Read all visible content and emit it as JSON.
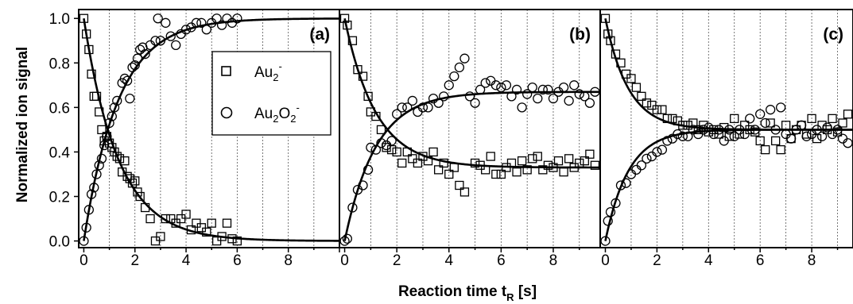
{
  "chart_data": {
    "type": "scatter",
    "ylabel": "Normalized ion signal",
    "xlabel": "Reaction time t",
    "xlabel_sub": "R",
    "xlabel_unit": " [s]",
    "ylim": [
      -0.03,
      1.04
    ],
    "yticks": [
      "0.0",
      "0.2",
      "0.4",
      "0.6",
      "0.8",
      "1.0"
    ],
    "legend": {
      "placement": "upper-right of panel (a)",
      "entries": [
        {
          "marker": "square",
          "base": "Au",
          "sub": "2",
          "sup": "-"
        },
        {
          "marker": "circle",
          "base": "Au",
          "sub": "2",
          "mid": "O",
          "sub2": "2",
          "sup": "-"
        }
      ]
    },
    "panels": [
      {
        "label": "(a)",
        "xlim": [
          -0.2,
          10
        ],
        "xticks": [
          "0",
          "2",
          "4",
          "6",
          "8"
        ],
        "series": [
          {
            "name": "Au2-",
            "marker": "square",
            "x": [
              0,
              0.1,
              0.2,
              0.3,
              0.4,
              0.5,
              0.6,
              0.7,
              0.8,
              0.9,
              1.0,
              1.1,
              1.2,
              1.3,
              1.4,
              1.5,
              1.6,
              1.7,
              1.8,
              1.9,
              2.0,
              2.1,
              2.2,
              2.4,
              2.6,
              2.8,
              3.0,
              3.2,
              3.4,
              3.6,
              3.8,
              4.0,
              4.2,
              4.4,
              4.6,
              4.8,
              5.0,
              5.2,
              5.4,
              5.6,
              5.8,
              6.0
            ],
            "y": [
              1.0,
              0.93,
              0.86,
              0.75,
              0.65,
              0.65,
              0.58,
              0.5,
              0.45,
              0.47,
              0.44,
              0.42,
              0.4,
              0.38,
              0.37,
              0.31,
              0.36,
              0.29,
              0.28,
              0.26,
              0.27,
              0.22,
              0.2,
              0.15,
              0.1,
              0.0,
              0.02,
              0.1,
              0.1,
              0.08,
              0.1,
              0.12,
              0.05,
              0.08,
              0.06,
              0.04,
              0.08,
              0.0,
              0.02,
              0.08,
              0.01,
              0.0
            ]
          },
          {
            "name": "Au2O2-",
            "marker": "circle",
            "x": [
              0,
              0.1,
              0.2,
              0.3,
              0.4,
              0.5,
              0.6,
              0.7,
              0.8,
              0.9,
              1.0,
              1.1,
              1.2,
              1.3,
              1.5,
              1.6,
              1.7,
              1.8,
              1.9,
              2.0,
              2.1,
              2.2,
              2.3,
              2.4,
              2.6,
              2.8,
              2.9,
              3.0,
              3.2,
              3.4,
              3.6,
              3.8,
              4.0,
              4.2,
              4.4,
              4.6,
              4.8,
              5.0,
              5.2,
              5.4,
              5.6,
              5.8,
              6.0
            ],
            "y": [
              0.0,
              0.06,
              0.14,
              0.21,
              0.24,
              0.3,
              0.34,
              0.37,
              0.43,
              0.47,
              0.53,
              0.56,
              0.6,
              0.63,
              0.71,
              0.73,
              0.72,
              0.64,
              0.78,
              0.79,
              0.82,
              0.86,
              0.87,
              0.84,
              0.88,
              0.9,
              1.0,
              0.9,
              0.98,
              0.92,
              0.88,
              0.93,
              0.95,
              0.96,
              0.98,
              0.98,
              0.95,
              0.98,
              1.0,
              0.97,
              1.0,
              0.98,
              1.0
            ]
          }
        ],
        "fits": [
          {
            "for": "Au2-",
            "form": "exp",
            "y0": 1.0,
            "yinf": 0.0,
            "tau": 1.35
          },
          {
            "for": "Au2O2-",
            "form": "exp",
            "y0": 0.0,
            "yinf": 1.0,
            "tau": 1.35
          }
        ]
      },
      {
        "label": "(b)",
        "xlim": [
          -0.2,
          9.8
        ],
        "xticks": [
          "0",
          "2",
          "4",
          "6",
          "8"
        ],
        "series": [
          {
            "name": "Au2-",
            "marker": "square",
            "x": [
              0,
              0.1,
              0.3,
              0.5,
              0.7,
              0.9,
              1.0,
              1.2,
              1.4,
              1.6,
              1.8,
              2.0,
              2.2,
              2.4,
              2.6,
              2.8,
              3.0,
              3.2,
              3.4,
              3.6,
              3.8,
              4.0,
              4.2,
              4.4,
              4.6,
              5.0,
              5.2,
              5.4,
              5.6,
              5.8,
              6.0,
              6.2,
              6.4,
              6.6,
              6.8,
              7.0,
              7.2,
              7.4,
              7.6,
              7.8,
              8.0,
              8.2,
              8.4,
              8.6,
              8.8,
              9.0,
              9.2,
              9.4,
              9.6
            ],
            "y": [
              1.0,
              0.97,
              0.9,
              0.77,
              0.74,
              0.65,
              0.58,
              0.56,
              0.5,
              0.42,
              0.41,
              0.4,
              0.35,
              0.4,
              0.37,
              0.35,
              0.38,
              0.36,
              0.4,
              0.32,
              0.35,
              0.3,
              0.33,
              0.25,
              0.22,
              0.35,
              0.34,
              0.32,
              0.38,
              0.3,
              0.3,
              0.33,
              0.35,
              0.31,
              0.36,
              0.32,
              0.37,
              0.38,
              0.32,
              0.34,
              0.33,
              0.36,
              0.31,
              0.37,
              0.33,
              0.35,
              0.36,
              0.39,
              0.34
            ]
          },
          {
            "name": "Au2O2-",
            "marker": "circle",
            "x": [
              0,
              0.1,
              0.3,
              0.5,
              0.7,
              0.9,
              1.0,
              1.2,
              1.4,
              1.6,
              1.8,
              2.0,
              2.2,
              2.4,
              2.6,
              2.8,
              3.0,
              3.2,
              3.4,
              3.6,
              3.8,
              4.0,
              4.2,
              4.4,
              4.6,
              4.8,
              5.0,
              5.2,
              5.4,
              5.6,
              5.8,
              6.0,
              6.2,
              6.4,
              6.6,
              6.8,
              7.0,
              7.2,
              7.4,
              7.6,
              7.8,
              8.0,
              8.2,
              8.4,
              8.6,
              8.8,
              9.0,
              9.2,
              9.4,
              9.6
            ],
            "y": [
              0.0,
              0.01,
              0.15,
              0.23,
              0.25,
              0.32,
              0.42,
              0.41,
              0.44,
              0.43,
              0.45,
              0.57,
              0.6,
              0.6,
              0.63,
              0.58,
              0.6,
              0.6,
              0.64,
              0.62,
              0.65,
              0.7,
              0.74,
              0.78,
              0.82,
              0.65,
              0.62,
              0.68,
              0.71,
              0.72,
              0.7,
              0.69,
              0.7,
              0.65,
              0.68,
              0.6,
              0.66,
              0.69,
              0.64,
              0.68,
              0.68,
              0.64,
              0.67,
              0.69,
              0.63,
              0.7,
              0.66,
              0.65,
              0.62,
              0.67
            ]
          }
        ],
        "fits": [
          {
            "for": "Au2-",
            "form": "exp",
            "y0": 1.0,
            "yinf": 0.33,
            "tau": 1.2
          },
          {
            "for": "Au2O2-",
            "form": "exp",
            "y0": 0.0,
            "yinf": 0.67,
            "tau": 1.2
          }
        ]
      },
      {
        "label": "(c)",
        "xlim": [
          -0.2,
          9.6
        ],
        "xticks": [
          "0",
          "2",
          "4",
          "6",
          "8"
        ],
        "series": [
          {
            "name": "Au2-",
            "marker": "square",
            "x": [
              0,
              0.1,
              0.2,
              0.4,
              0.6,
              0.8,
              1.0,
              1.2,
              1.4,
              1.6,
              1.8,
              2.0,
              2.2,
              2.4,
              2.6,
              2.8,
              3.0,
              3.2,
              3.4,
              3.6,
              3.8,
              4.0,
              4.2,
              4.4,
              4.6,
              4.8,
              5.0,
              5.2,
              5.4,
              5.6,
              5.8,
              6.0,
              6.2,
              6.4,
              6.6,
              6.8,
              7.0,
              7.2,
              7.4,
              7.6,
              7.8,
              8.0,
              8.2,
              8.4,
              8.6,
              8.8,
              9.0,
              9.2,
              9.4
            ],
            "y": [
              1.0,
              0.93,
              0.9,
              0.84,
              0.8,
              0.75,
              0.73,
              0.69,
              0.65,
              0.62,
              0.61,
              0.59,
              0.59,
              0.55,
              0.55,
              0.54,
              0.52,
              0.52,
              0.53,
              0.5,
              0.52,
              0.49,
              0.5,
              0.48,
              0.51,
              0.47,
              0.55,
              0.48,
              0.52,
              0.5,
              0.49,
              0.45,
              0.41,
              0.53,
              0.45,
              0.41,
              0.52,
              0.46,
              0.5,
              0.52,
              0.48,
              0.55,
              0.46,
              0.52,
              0.5,
              0.55,
              0.49,
              0.53,
              0.57
            ]
          },
          {
            "name": "Au2O2-",
            "marker": "circle",
            "x": [
              0,
              0.1,
              0.2,
              0.4,
              0.6,
              0.8,
              1.0,
              1.2,
              1.4,
              1.6,
              1.8,
              2.0,
              2.2,
              2.4,
              2.6,
              2.8,
              3.0,
              3.2,
              3.4,
              3.6,
              3.8,
              4.0,
              4.2,
              4.4,
              4.6,
              4.8,
              5.0,
              5.2,
              5.4,
              5.6,
              5.8,
              6.0,
              6.2,
              6.4,
              6.6,
              6.8,
              7.0,
              7.2,
              7.4,
              7.6,
              7.8,
              8.0,
              8.2,
              8.4,
              8.6,
              8.8,
              9.0,
              9.2,
              9.4
            ],
            "y": [
              0.0,
              0.09,
              0.13,
              0.17,
              0.25,
              0.26,
              0.3,
              0.32,
              0.34,
              0.37,
              0.38,
              0.4,
              0.41,
              0.45,
              0.46,
              0.48,
              0.47,
              0.47,
              0.5,
              0.48,
              0.5,
              0.51,
              0.48,
              0.5,
              0.45,
              0.5,
              0.47,
              0.5,
              0.48,
              0.55,
              0.5,
              0.57,
              0.53,
              0.59,
              0.5,
              0.6,
              0.48,
              0.46,
              0.5,
              0.52,
              0.47,
              0.48,
              0.5,
              0.47,
              0.51,
              0.48,
              0.5,
              0.46,
              0.44
            ]
          }
        ],
        "fits": [
          {
            "for": "Au2-",
            "form": "exp",
            "y0": 1.0,
            "yinf": 0.5,
            "tau": 0.9
          },
          {
            "for": "Au2O2-",
            "form": "exp",
            "y0": 0.0,
            "yinf": 0.5,
            "tau": 0.9
          }
        ]
      }
    ]
  }
}
